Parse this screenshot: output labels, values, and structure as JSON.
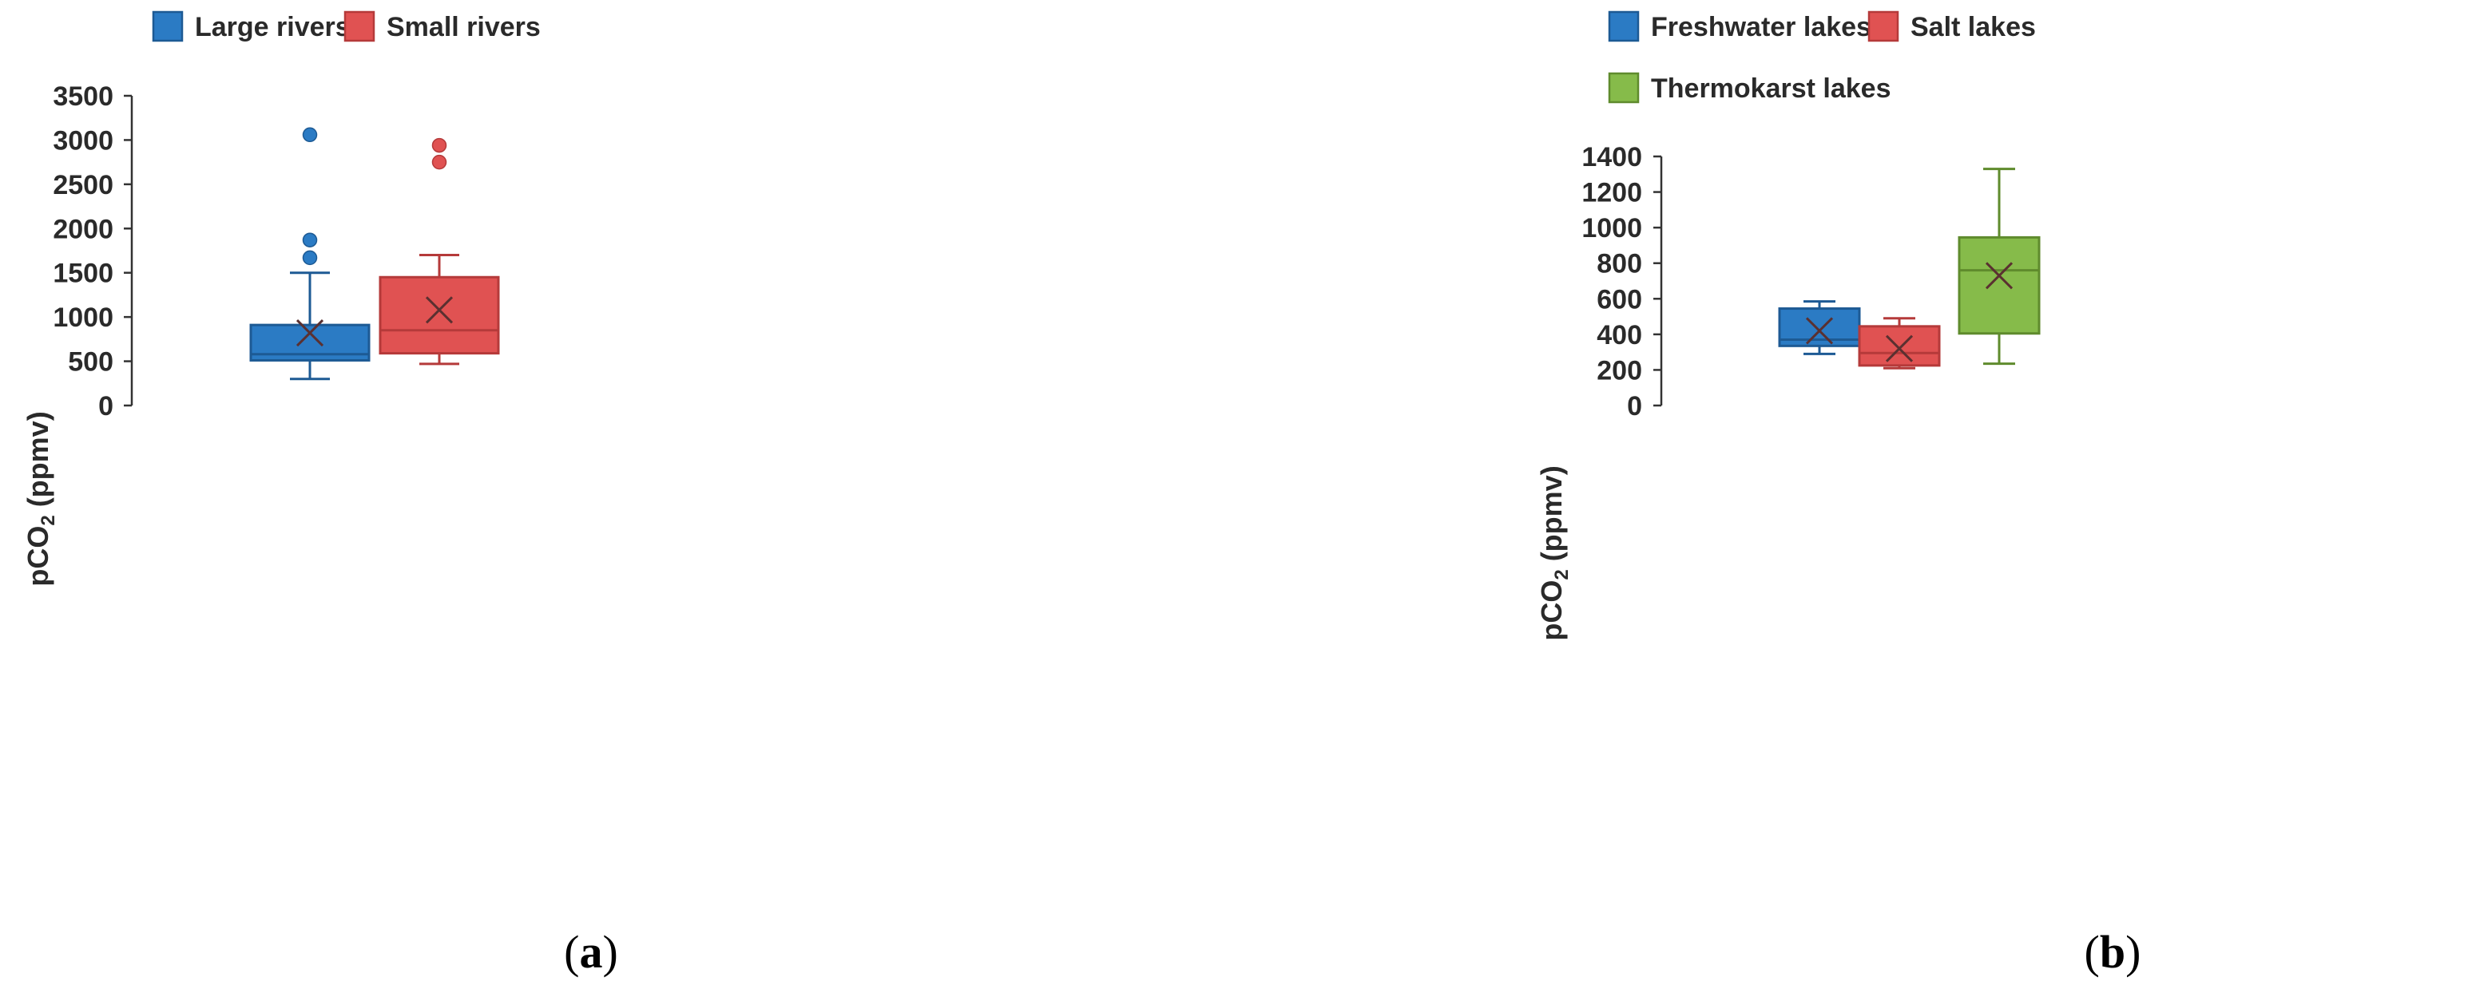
{
  "charts": {
    "a": {
      "panel_label_open": "(",
      "panel_label_letter": "a",
      "panel_label_close": ")",
      "ylabel_main": "pCO",
      "ylabel_sub": "2",
      "ylabel_unit": " (ppmv)"
    },
    "b": {
      "panel_label_open": "(",
      "panel_label_letter": "b",
      "panel_label_close": ")",
      "ylabel_main": "pCO",
      "ylabel_sub": "2",
      "ylabel_unit": " (ppmv)"
    }
  },
  "chart_data": [
    {
      "type": "box",
      "panel": "a",
      "ylabel": "pCO2 (ppmv)",
      "ylim": [
        0,
        3500
      ],
      "yticks": [
        0,
        500,
        1000,
        1500,
        2000,
        2500,
        3000,
        3500
      ],
      "legend_position": "top",
      "grid": false,
      "series": [
        {
          "name": "Large rivers",
          "color": "#2b7bc4",
          "edge": "#1d5a94",
          "whisker_low": 300,
          "q1": 510,
          "median": 580,
          "q3": 910,
          "whisker_high": 1500,
          "mean": 820,
          "outliers": [
            1670,
            1870,
            3060
          ]
        },
        {
          "name": "Small rivers",
          "color": "#e05252",
          "edge": "#b53a3a",
          "whisker_low": 470,
          "q1": 590,
          "median": 850,
          "q3": 1450,
          "whisker_high": 1700,
          "mean": 1080,
          "outliers": [
            2750,
            2940
          ]
        }
      ]
    },
    {
      "type": "box",
      "panel": "b",
      "ylabel": "pCO2 (ppmv)",
      "ylim": [
        0,
        1400
      ],
      "yticks": [
        0,
        200,
        400,
        600,
        800,
        1000,
        1200,
        1400
      ],
      "legend_position": "top",
      "grid": false,
      "series": [
        {
          "name": "Freshwater lakes",
          "color": "#2b7bc4",
          "edge": "#1d5a94",
          "whisker_low": 290,
          "q1": 335,
          "median": 370,
          "q3": 545,
          "whisker_high": 585,
          "mean": 420,
          "outliers": []
        },
        {
          "name": "Salt lakes",
          "color": "#e05252",
          "edge": "#b53a3a",
          "whisker_low": 210,
          "q1": 225,
          "median": 295,
          "q3": 445,
          "whisker_high": 490,
          "mean": 320,
          "outliers": []
        },
        {
          "name": "Thermokarst lakes",
          "color": "#86bb4a",
          "edge": "#5f8b2d",
          "whisker_low": 235,
          "q1": 405,
          "median": 760,
          "q3": 945,
          "whisker_high": 1330,
          "mean": 730,
          "outliers": []
        }
      ]
    }
  ]
}
